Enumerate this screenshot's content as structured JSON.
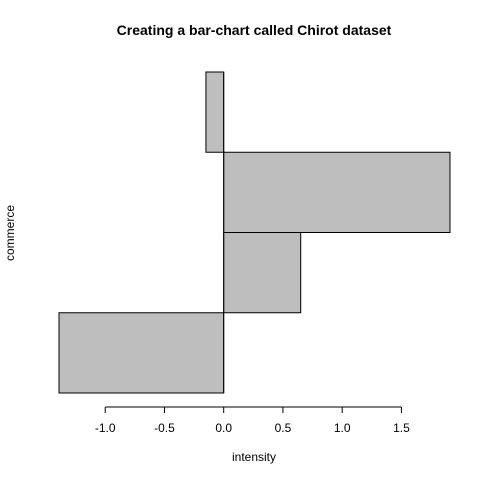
{
  "chart_data": {
    "type": "bar",
    "orientation": "horizontal",
    "title": "Creating a bar-chart called Chirot dataset",
    "xlabel": "intensity",
    "ylabel": "commerce",
    "values": [
      -1.39,
      0.65,
      1.91,
      -0.15
    ],
    "xlim": [
      -1.39,
      1.91
    ],
    "x_ticks": [
      -1.0,
      -0.5,
      0.0,
      0.5,
      1.0,
      1.5
    ],
    "x_tick_labels": [
      "-1.0",
      "-0.5",
      "0.0",
      "0.5",
      "1.0",
      "1.5"
    ],
    "grid": false,
    "legend": "none",
    "bar_color": "#bebebe",
    "bar_border_color": "#000000"
  }
}
